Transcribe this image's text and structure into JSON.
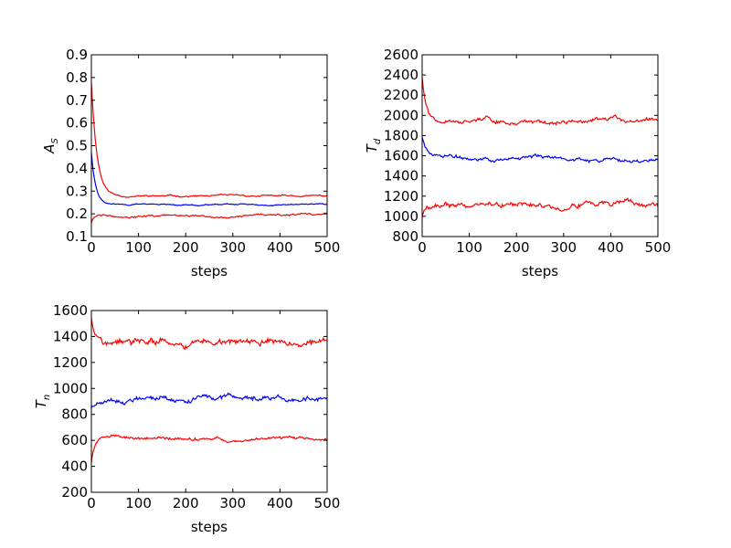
{
  "chart_data": [
    {
      "type": "line",
      "xlabel": "steps",
      "ylabel": "A_S",
      "ylabel_display": {
        "main": "A",
        "sub": "S"
      },
      "xlim": [
        0,
        500
      ],
      "ylim": [
        0.1,
        0.9
      ],
      "xticks": [
        0,
        100,
        200,
        300,
        400,
        500
      ],
      "yticks": [
        0.1,
        0.2,
        0.3,
        0.4,
        0.5,
        0.6,
        0.7,
        0.8,
        0.9
      ],
      "ytick_labels": [
        "0.1",
        "0.2",
        "0.3",
        "0.4",
        "0.5",
        "0.6",
        "0.7",
        "0.8",
        "0.9"
      ],
      "grid": false,
      "series": [
        {
          "color": "#ff0000",
          "start": 0.78,
          "level": 0.278,
          "decay": 12,
          "noise": 0.004,
          "seed": 11
        },
        {
          "color": "#0000ff",
          "start": 0.47,
          "level": 0.242,
          "decay": 9,
          "noise": 0.003,
          "seed": 22
        },
        {
          "color": "#ff0000",
          "start": 0.16,
          "level": 0.193,
          "decay": 4,
          "noise": 0.005,
          "seed": 33
        }
      ]
    },
    {
      "type": "line",
      "xlabel": "steps",
      "ylabel": "T_d",
      "ylabel_display": {
        "main": "T",
        "sub": "d"
      },
      "xlim": [
        0,
        500
      ],
      "ylim": [
        800,
        2600
      ],
      "xticks": [
        0,
        100,
        200,
        300,
        400,
        500
      ],
      "yticks": [
        800,
        1000,
        1200,
        1400,
        1600,
        1800,
        2000,
        2200,
        2400,
        2600
      ],
      "ytick_labels": [
        "800",
        "1000",
        "1200",
        "1400",
        "1600",
        "1800",
        "2000",
        "2200",
        "2400",
        "2600"
      ],
      "grid": false,
      "series": [
        {
          "color": "#ff0000",
          "start": 2380,
          "level": 1940,
          "decay": 8,
          "noise": 25,
          "seed": 44
        },
        {
          "color": "#0000ff",
          "start": 1780,
          "level": 1575,
          "decay": 15,
          "noise": 22,
          "seed": 55
        },
        {
          "color": "#ff0000",
          "start": 1000,
          "level": 1120,
          "decay": 5,
          "noise": 30,
          "seed": 66
        }
      ]
    },
    {
      "type": "line",
      "xlabel": "steps",
      "ylabel": "T_n",
      "ylabel_display": {
        "main": "T",
        "sub": "n"
      },
      "xlim": [
        0,
        500
      ],
      "ylim": [
        200,
        1600
      ],
      "xticks": [
        0,
        100,
        200,
        300,
        400,
        500
      ],
      "yticks": [
        200,
        400,
        600,
        800,
        1000,
        1200,
        1400,
        1600
      ],
      "ytick_labels": [
        "200",
        "400",
        "600",
        "800",
        "1000",
        "1200",
        "1400",
        "1600"
      ],
      "grid": false,
      "series": [
        {
          "color": "#ff0000",
          "start": 1540,
          "level": 1345,
          "decay": 8,
          "noise": 30,
          "seed": 77
        },
        {
          "color": "#0000ff",
          "start": 850,
          "level": 920,
          "decay": 8,
          "noise": 22,
          "seed": 88
        },
        {
          "color": "#ff0000",
          "start": 430,
          "level": 615,
          "decay": 6,
          "noise": 14,
          "seed": 99
        }
      ]
    }
  ]
}
